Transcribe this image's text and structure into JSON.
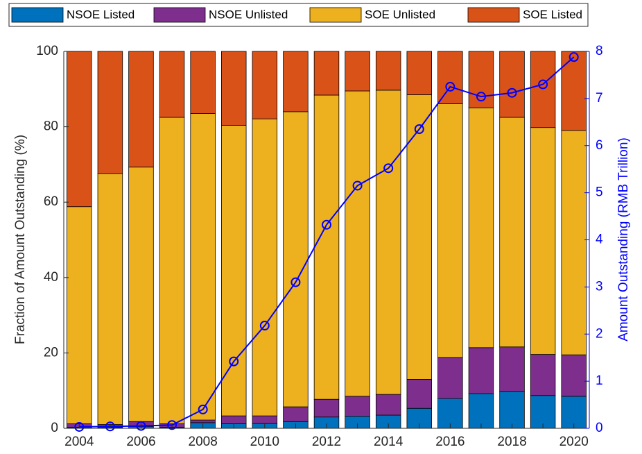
{
  "chart_data": {
    "type": "bar",
    "categories": [
      "2004",
      null,
      "2006",
      null,
      "2008",
      null,
      "2010",
      null,
      "2012",
      null,
      "2014",
      null,
      "2016",
      null,
      "2018",
      null,
      "2020"
    ],
    "series": [
      {
        "name": "NSOE Listed",
        "color": "#0072bd",
        "values": [
          0.3,
          0.3,
          0.5,
          0.3,
          1.5,
          1.2,
          1.3,
          1.8,
          3.0,
          3.2,
          3.5,
          5.3,
          7.9,
          9.2,
          9.8,
          8.7,
          8.5
        ]
      },
      {
        "name": "NSOE Unlisted",
        "color": "#7e2f8e",
        "values": [
          0.9,
          0.7,
          1.3,
          0.9,
          0.7,
          2.1,
          2.0,
          3.9,
          4.7,
          5.3,
          5.5,
          7.7,
          10.9,
          12.2,
          11.8,
          10.9,
          11.0
        ]
      },
      {
        "name": "SOE Unlisted",
        "color": "#edb120",
        "values": [
          57.6,
          66.6,
          67.5,
          81.3,
          81.3,
          77.1,
          78.8,
          78.3,
          80.7,
          81.0,
          80.7,
          75.5,
          67.3,
          63.6,
          60.9,
          60.2,
          59.5
        ]
      },
      {
        "name": "SOE Listed",
        "color": "#d95319",
        "values": [
          41.2,
          32.4,
          30.7,
          17.5,
          16.5,
          19.6,
          17.9,
          16.0,
          11.6,
          10.5,
          10.3,
          11.5,
          13.9,
          15.0,
          17.5,
          20.2,
          21.0
        ]
      },
      {
        "type": "line",
        "axis": "y2",
        "color": "#0000ff",
        "values": [
          0.03,
          0.04,
          0.05,
          0.07,
          0.4,
          1.42,
          2.18,
          3.1,
          4.32,
          5.15,
          5.52,
          6.35,
          7.25,
          7.04,
          7.12,
          7.3,
          7.88
        ]
      }
    ],
    "y_label": "Fraction of Amount Outstanding (%)",
    "y2_label": "Amount Outstanding (RMB Trillion)",
    "ylim": [
      0,
      100
    ],
    "yticks": [
      0,
      20,
      40,
      60,
      80,
      100
    ],
    "y2lim": [
      0,
      8
    ],
    "y2ticks": [
      0,
      1,
      2,
      3,
      4,
      5,
      6,
      7,
      8
    ],
    "y2_color": "#0000ff",
    "legend": "top",
    "stacked": true
  }
}
